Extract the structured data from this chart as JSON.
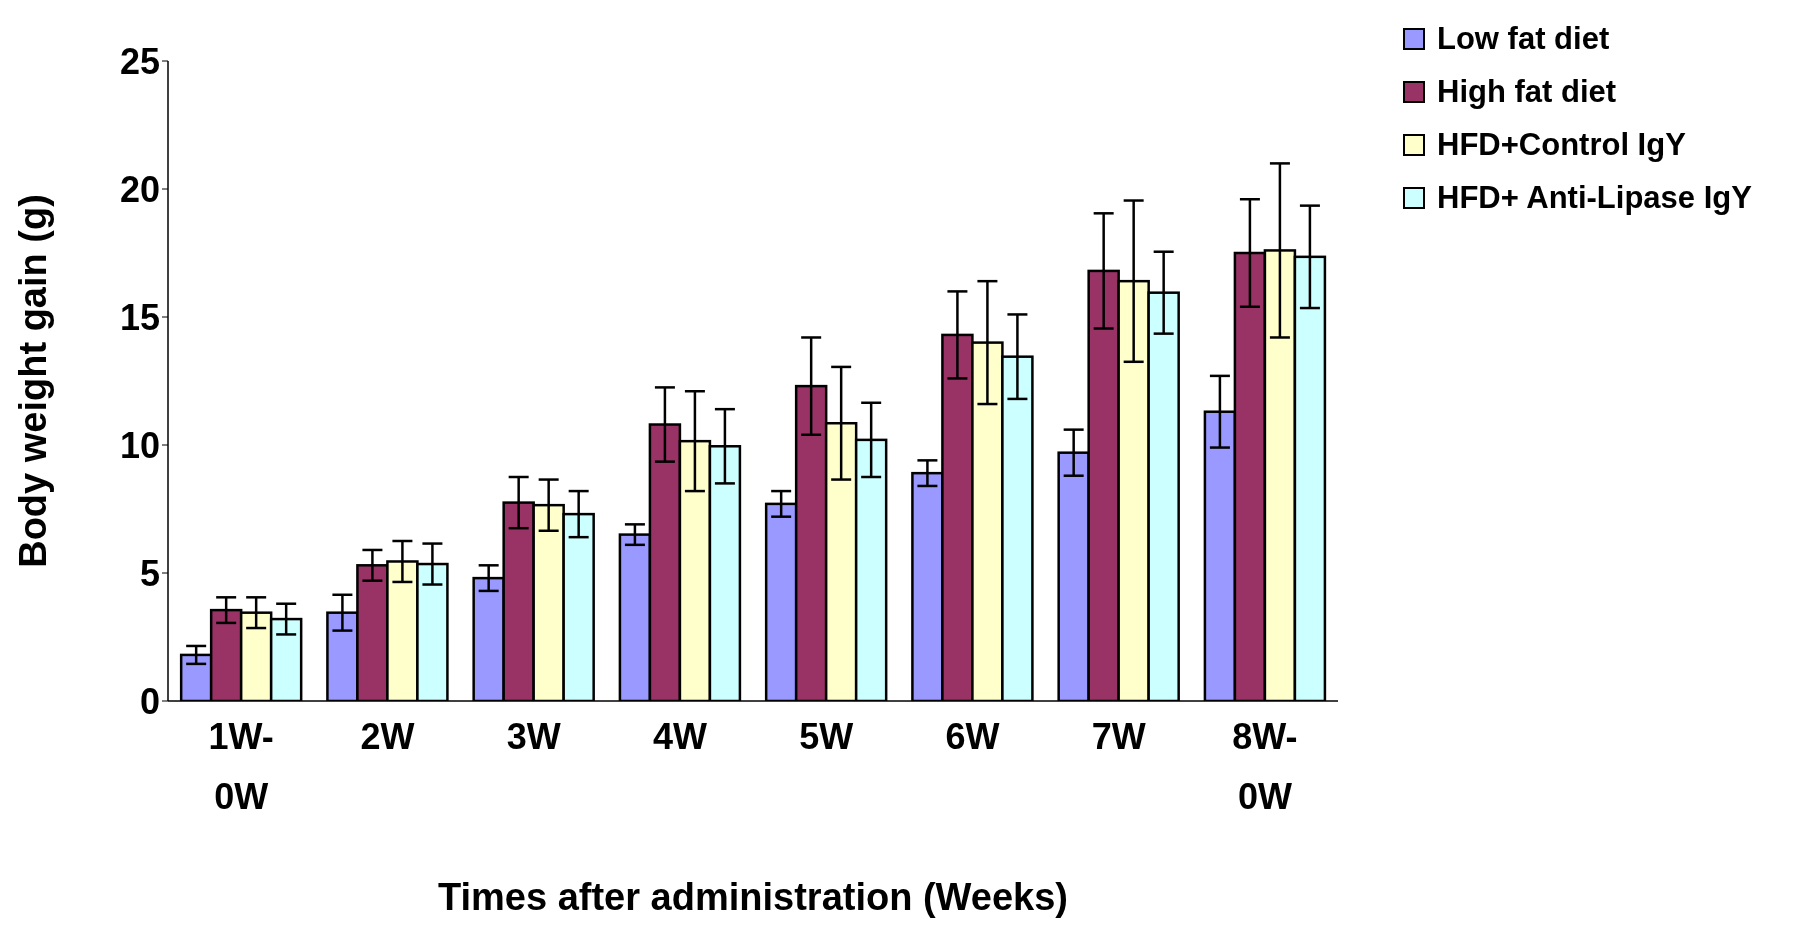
{
  "chart_data": {
    "type": "bar",
    "xlabel": "Times after administration (Weeks)",
    "ylabel": "Body weight gain (g)",
    "categories": [
      "1W-0W",
      "2W",
      "3W",
      "4W",
      "5W",
      "6W",
      "7W",
      "8W-0W"
    ],
    "series": [
      {
        "name": "Low fat diet",
        "color": "#9999ff",
        "values": [
          1.8,
          3.45,
          4.8,
          6.5,
          7.7,
          8.9,
          9.7,
          11.3
        ],
        "errors": [
          0.35,
          0.7,
          0.5,
          0.4,
          0.5,
          0.5,
          0.9,
          1.4
        ]
      },
      {
        "name": "High fat diet",
        "color": "#993366",
        "values": [
          3.55,
          5.3,
          7.75,
          10.8,
          12.3,
          14.3,
          16.8,
          17.5
        ],
        "errors": [
          0.5,
          0.6,
          1.0,
          1.45,
          1.9,
          1.7,
          2.25,
          2.1
        ]
      },
      {
        "name": "HFD+Control IgY",
        "color": "#ffffcc",
        "values": [
          3.45,
          5.45,
          7.65,
          10.15,
          10.85,
          14.0,
          16.4,
          17.6
        ],
        "errors": [
          0.6,
          0.8,
          1.0,
          1.95,
          2.2,
          2.4,
          3.15,
          3.4
        ]
      },
      {
        "name": "HFD+ Anti-Lipase IgY",
        "color": "#ccffff",
        "values": [
          3.2,
          5.35,
          7.3,
          9.95,
          10.2,
          13.45,
          15.95,
          17.35
        ],
        "errors": [
          0.6,
          0.8,
          0.9,
          1.45,
          1.45,
          1.65,
          1.6,
          2.0
        ]
      }
    ],
    "ylim": [
      0,
      25
    ],
    "yticks": [
      0,
      5,
      10,
      15,
      20,
      25
    ],
    "grid": false,
    "legend": "top right"
  }
}
